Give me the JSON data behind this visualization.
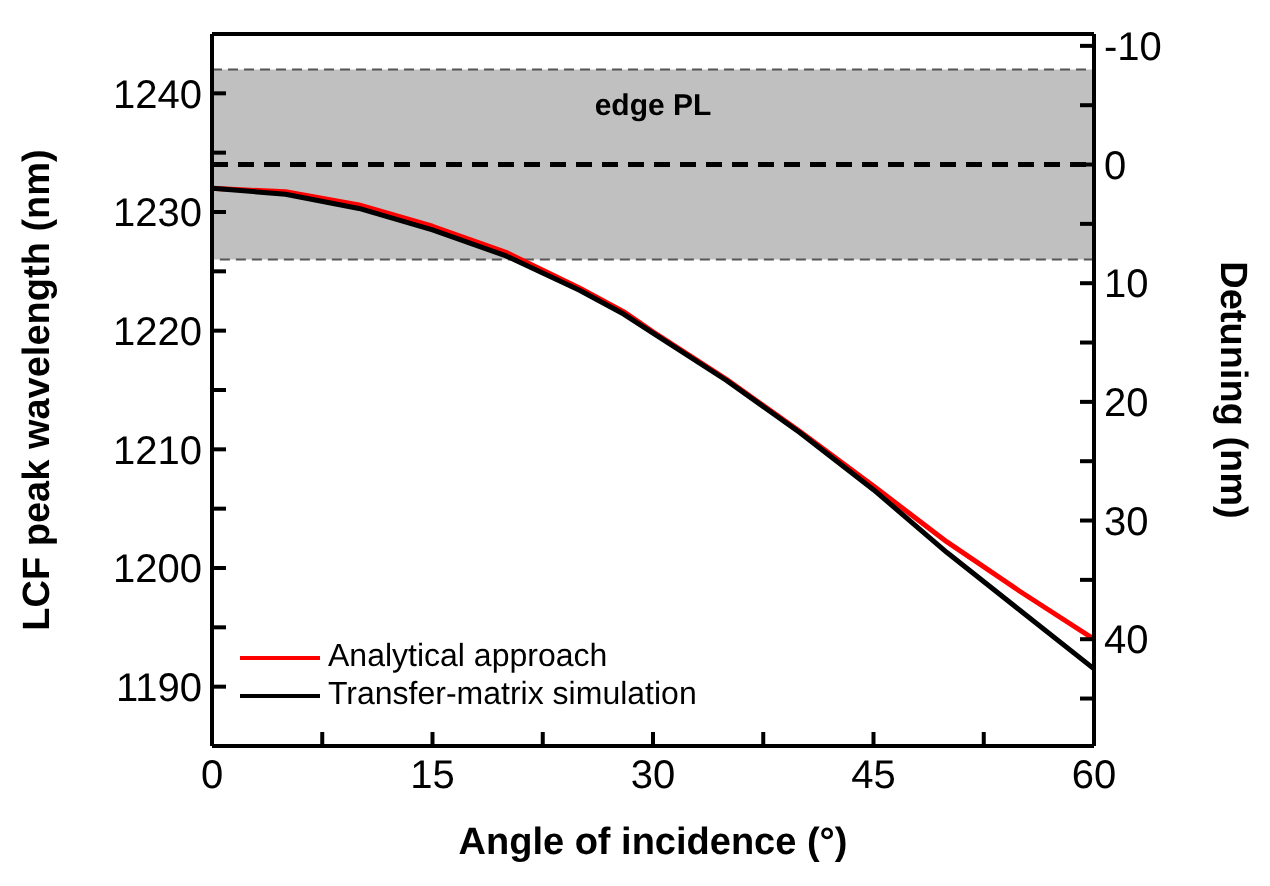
{
  "chart_data": {
    "type": "line",
    "xlabel": "Angle of incidence (°)",
    "ylabel": "LCF peak wavelength (nm)",
    "y2label": "Detuning (nm)",
    "xlim": [
      0,
      60
    ],
    "xticks": [
      0,
      {
        "value": 7.5,
        "label": null
      },
      15,
      {
        "value": 22.5,
        "label": null
      },
      30,
      {
        "value": 37.5,
        "label": null
      },
      45,
      {
        "value": 52.5,
        "label": null
      },
      60
    ],
    "ylim": [
      1185,
      1245
    ],
    "yticks": [
      1190,
      {
        "value": 1195,
        "label": null
      },
      1200,
      {
        "value": 1205,
        "label": null
      },
      1210,
      {
        "value": 1215,
        "label": null
      },
      1220,
      {
        "value": 1225,
        "label": null
      },
      1230,
      {
        "value": 1235,
        "label": null
      },
      1240
    ],
    "y2lim": [
      49,
      -11
    ],
    "y2ticks": [
      -10,
      {
        "value": -5,
        "label": null
      },
      0,
      {
        "value": 5,
        "label": null
      },
      10,
      {
        "value": 15,
        "label": null
      },
      20,
      {
        "value": 25,
        "label": null
      },
      30,
      {
        "value": 35,
        "label": null
      },
      40,
      {
        "value": 45,
        "label": null
      }
    ],
    "x": [
      0,
      5,
      10,
      15,
      20,
      25,
      28,
      30,
      35,
      40,
      45,
      50,
      55,
      60
    ],
    "series": [
      {
        "name": "Analytical approach",
        "color": "#ff0000",
        "values": [
          1232,
          1231.7,
          1230.6,
          1228.8,
          1226.6,
          1223.6,
          1221.6,
          1219.9,
          1215.9,
          1211.5,
          1206.9,
          1202.2,
          1198,
          1194
        ]
      },
      {
        "name": "Transfer-matrix simulation",
        "color": "#000000",
        "values": [
          1232,
          1231.5,
          1230.3,
          1228.5,
          1226.3,
          1223.4,
          1221.4,
          1219.8,
          1215.8,
          1211.4,
          1206.6,
          1201.3,
          1196.4,
          1191.5
        ]
      }
    ],
    "bands": [
      {
        "axis": "y",
        "from": 1226,
        "to": 1242,
        "label": "edge PL",
        "color": "#c0c0c0"
      }
    ],
    "ref_lines": [
      {
        "axis": "y",
        "value": 1234,
        "label": null,
        "line_style": "dashed",
        "color": "#000000"
      }
    ],
    "legend": "bottom left",
    "grid": false,
    "marker": "none",
    "line_style": "solid"
  }
}
